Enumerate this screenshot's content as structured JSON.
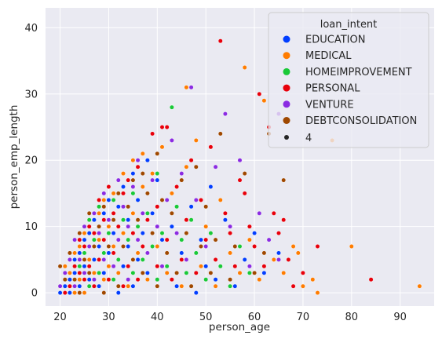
{
  "chart_data": {
    "type": "scatter",
    "xlabel": "person_age",
    "ylabel": "person_emp_length",
    "xlim": [
      17,
      97
    ],
    "ylim": [
      -2,
      43
    ],
    "xticks": [
      20,
      30,
      40,
      50,
      60,
      70,
      80,
      90
    ],
    "yticks": [
      0,
      10,
      20,
      30,
      40
    ],
    "grid": true,
    "legend": {
      "title": "loan_intent",
      "placement": "top-right",
      "size_entry_label": "4"
    },
    "series": [
      {
        "name": "EDUCATION",
        "color": "#023eff",
        "points": [
          [
            20,
            0
          ],
          [
            21,
            1
          ],
          [
            22,
            2
          ],
          [
            22,
            0
          ],
          [
            23,
            3
          ],
          [
            23,
            5
          ],
          [
            24,
            1
          ],
          [
            24,
            6
          ],
          [
            25,
            4
          ],
          [
            25,
            8
          ],
          [
            26,
            2
          ],
          [
            26,
            9
          ],
          [
            27,
            5
          ],
          [
            27,
            11
          ],
          [
            28,
            1
          ],
          [
            28,
            7
          ],
          [
            29,
            3
          ],
          [
            29,
            12
          ],
          [
            30,
            6
          ],
          [
            30,
            14
          ],
          [
            31,
            2
          ],
          [
            31,
            9
          ],
          [
            32,
            0
          ],
          [
            32,
            13
          ],
          [
            33,
            4
          ],
          [
            33,
            16
          ],
          [
            34,
            7
          ],
          [
            34,
            11
          ],
          [
            35,
            1
          ],
          [
            35,
            18
          ],
          [
            36,
            5
          ],
          [
            36,
            14
          ],
          [
            37,
            9
          ],
          [
            38,
            3
          ],
          [
            38,
            20
          ],
          [
            39,
            12
          ],
          [
            40,
            2
          ],
          [
            40,
            17
          ],
          [
            41,
            8
          ],
          [
            42,
            4
          ],
          [
            43,
            10
          ],
          [
            44,
            1
          ],
          [
            45,
            6
          ],
          [
            46,
            3
          ],
          [
            47,
            13
          ],
          [
            48,
            0
          ],
          [
            49,
            8
          ],
          [
            50,
            4
          ],
          [
            51,
            16
          ],
          [
            52,
            2
          ],
          [
            54,
            11
          ],
          [
            56,
            1
          ],
          [
            58,
            5
          ],
          [
            60,
            9
          ],
          [
            62,
            3
          ],
          [
            65,
            6
          ]
        ]
      },
      {
        "name": "MEDICAL",
        "color": "#ff7c00",
        "points": [
          [
            20,
            1
          ],
          [
            21,
            4
          ],
          [
            22,
            3
          ],
          [
            23,
            0
          ],
          [
            23,
            6
          ],
          [
            24,
            2
          ],
          [
            24,
            7
          ],
          [
            25,
            0
          ],
          [
            25,
            9
          ],
          [
            26,
            5
          ],
          [
            26,
            11
          ],
          [
            27,
            3
          ],
          [
            28,
            8
          ],
          [
            28,
            12
          ],
          [
            29,
            2
          ],
          [
            29,
            14
          ],
          [
            30,
            4
          ],
          [
            30,
            10
          ],
          [
            31,
            7
          ],
          [
            31,
            15
          ],
          [
            32,
            3
          ],
          [
            33,
            9
          ],
          [
            33,
            18
          ],
          [
            34,
            1
          ],
          [
            35,
            12
          ],
          [
            35,
            20
          ],
          [
            36,
            6
          ],
          [
            37,
            16
          ],
          [
            37,
            21
          ],
          [
            38,
            2
          ],
          [
            39,
            18
          ],
          [
            40,
            7
          ],
          [
            41,
            22
          ],
          [
            42,
            3
          ],
          [
            43,
            15
          ],
          [
            44,
            9
          ],
          [
            45,
            1
          ],
          [
            46,
            31
          ],
          [
            46,
            19
          ],
          [
            48,
            23
          ],
          [
            49,
            4
          ],
          [
            50,
            10
          ],
          [
            52,
            1
          ],
          [
            53,
            14
          ],
          [
            55,
            6
          ],
          [
            57,
            3
          ],
          [
            58,
            34
          ],
          [
            59,
            8
          ],
          [
            61,
            2
          ],
          [
            62,
            29
          ],
          [
            64,
            5
          ],
          [
            66,
            3
          ],
          [
            68,
            7
          ],
          [
            69,
            6
          ],
          [
            70,
            1
          ],
          [
            72,
            2
          ],
          [
            73,
            0
          ],
          [
            76,
            23
          ],
          [
            80,
            7
          ],
          [
            94,
            1
          ]
        ]
      },
      {
        "name": "HOMEIMPROVEMENT",
        "color": "#1ac938",
        "points": [
          [
            23,
            2
          ],
          [
            24,
            4
          ],
          [
            25,
            6
          ],
          [
            26,
            1
          ],
          [
            26,
            11
          ],
          [
            27,
            8
          ],
          [
            28,
            3
          ],
          [
            28,
            13
          ],
          [
            29,
            6
          ],
          [
            30,
            9
          ],
          [
            31,
            2
          ],
          [
            31,
            14
          ],
          [
            32,
            5
          ],
          [
            33,
            11
          ],
          [
            34,
            8
          ],
          [
            35,
            3
          ],
          [
            35,
            15
          ],
          [
            36,
            10
          ],
          [
            37,
            5
          ],
          [
            38,
            12
          ],
          [
            39,
            7
          ],
          [
            40,
            2
          ],
          [
            40,
            18
          ],
          [
            41,
            9
          ],
          [
            42,
            4
          ],
          [
            43,
            28
          ],
          [
            44,
            13
          ],
          [
            45,
            8
          ],
          [
            46,
            3
          ],
          [
            47,
            11
          ],
          [
            48,
            6
          ],
          [
            50,
            2
          ],
          [
            51,
            9
          ],
          [
            53,
            4
          ],
          [
            55,
            1
          ],
          [
            57,
            7
          ],
          [
            59,
            3
          ]
        ]
      },
      {
        "name": "PERSONAL",
        "color": "#e8000b",
        "points": [
          [
            21,
            0
          ],
          [
            22,
            1
          ],
          [
            23,
            4
          ],
          [
            24,
            3
          ],
          [
            24,
            8
          ],
          [
            25,
            2
          ],
          [
            25,
            7
          ],
          [
            26,
            4
          ],
          [
            26,
            10
          ],
          [
            27,
            1
          ],
          [
            27,
            9
          ],
          [
            28,
            5
          ],
          [
            28,
            14
          ],
          [
            29,
            8
          ],
          [
            29,
            11
          ],
          [
            30,
            2
          ],
          [
            30,
            16
          ],
          [
            31,
            6
          ],
          [
            31,
            12
          ],
          [
            32,
            10
          ],
          [
            33,
            1
          ],
          [
            33,
            15
          ],
          [
            34,
            4
          ],
          [
            34,
            17
          ],
          [
            35,
            9
          ],
          [
            36,
            2
          ],
          [
            36,
            19
          ],
          [
            37,
            7
          ],
          [
            38,
            11
          ],
          [
            39,
            24
          ],
          [
            40,
            4
          ],
          [
            40,
            13
          ],
          [
            41,
            25
          ],
          [
            42,
            8
          ],
          [
            42,
            25
          ],
          [
            43,
            2
          ],
          [
            44,
            16
          ],
          [
            45,
            5
          ],
          [
            46,
            11
          ],
          [
            47,
            20
          ],
          [
            48,
            3
          ],
          [
            49,
            14
          ],
          [
            50,
            8
          ],
          [
            51,
            22
          ],
          [
            52,
            5
          ],
          [
            53,
            38
          ],
          [
            54,
            12
          ],
          [
            55,
            9
          ],
          [
            56,
            4
          ],
          [
            57,
            17
          ],
          [
            58,
            15
          ],
          [
            59,
            10
          ],
          [
            60,
            7
          ],
          [
            61,
            30
          ],
          [
            62,
            4
          ],
          [
            63,
            25
          ],
          [
            64,
            12
          ],
          [
            65,
            9
          ],
          [
            66,
            11
          ],
          [
            67,
            5
          ],
          [
            68,
            1
          ],
          [
            70,
            3
          ],
          [
            73,
            7
          ],
          [
            84,
            2
          ]
        ]
      },
      {
        "name": "VENTURE",
        "color": "#8b2be2",
        "points": [
          [
            20,
            1
          ],
          [
            21,
            3
          ],
          [
            22,
            5
          ],
          [
            23,
            1
          ],
          [
            23,
            8
          ],
          [
            24,
            5
          ],
          [
            25,
            3
          ],
          [
            25,
            10
          ],
          [
            26,
            7
          ],
          [
            27,
            2
          ],
          [
            27,
            12
          ],
          [
            28,
            9
          ],
          [
            29,
            5
          ],
          [
            29,
            15
          ],
          [
            30,
            11
          ],
          [
            31,
            4
          ],
          [
            32,
            8
          ],
          [
            32,
            17
          ],
          [
            33,
            13
          ],
          [
            34,
            2
          ],
          [
            34,
            10
          ],
          [
            35,
            16
          ],
          [
            36,
            8
          ],
          [
            36,
            20
          ],
          [
            37,
            12
          ],
          [
            38,
            6
          ],
          [
            39,
            17
          ],
          [
            40,
            10
          ],
          [
            41,
            4
          ],
          [
            42,
            14
          ],
          [
            43,
            23
          ],
          [
            44,
            9
          ],
          [
            45,
            18
          ],
          [
            46,
            5
          ],
          [
            47,
            31
          ],
          [
            48,
            14
          ],
          [
            50,
            7
          ],
          [
            52,
            19
          ],
          [
            54,
            27
          ],
          [
            55,
            10
          ],
          [
            57,
            20
          ],
          [
            59,
            4
          ],
          [
            61,
            12
          ],
          [
            63,
            8
          ],
          [
            65,
            27
          ],
          [
            65,
            5
          ]
        ]
      },
      {
        "name": "DEBTCONSOLIDATION",
        "color": "#9f4800",
        "points": [
          [
            20,
            4
          ],
          [
            21,
            2
          ],
          [
            22,
            6
          ],
          [
            23,
            2
          ],
          [
            24,
            0
          ],
          [
            24,
            9
          ],
          [
            25,
            5
          ],
          [
            26,
            3
          ],
          [
            26,
            12
          ],
          [
            27,
            7
          ],
          [
            28,
            10
          ],
          [
            29,
            0
          ],
          [
            29,
            13
          ],
          [
            30,
            7
          ],
          [
            31,
            11
          ],
          [
            32,
            1
          ],
          [
            32,
            15
          ],
          [
            33,
            7
          ],
          [
            34,
            13
          ],
          [
            35,
            5
          ],
          [
            35,
            17
          ],
          [
            36,
            11
          ],
          [
            37,
            3
          ],
          [
            37,
            18
          ],
          [
            38,
            15
          ],
          [
            39,
            9
          ],
          [
            40,
            1
          ],
          [
            40,
            21
          ],
          [
            41,
            14
          ],
          [
            42,
            6
          ],
          [
            43,
            12
          ],
          [
            44,
            3
          ],
          [
            45,
            17
          ],
          [
            46,
            9
          ],
          [
            47,
            1
          ],
          [
            48,
            19
          ],
          [
            49,
            7
          ],
          [
            50,
            13
          ],
          [
            51,
            3
          ],
          [
            52,
            8
          ],
          [
            53,
            24
          ],
          [
            55,
            2
          ],
          [
            56,
            7
          ],
          [
            58,
            18
          ],
          [
            60,
            3
          ],
          [
            62,
            6
          ],
          [
            63,
            24
          ],
          [
            66,
            17
          ]
        ]
      }
    ]
  }
}
